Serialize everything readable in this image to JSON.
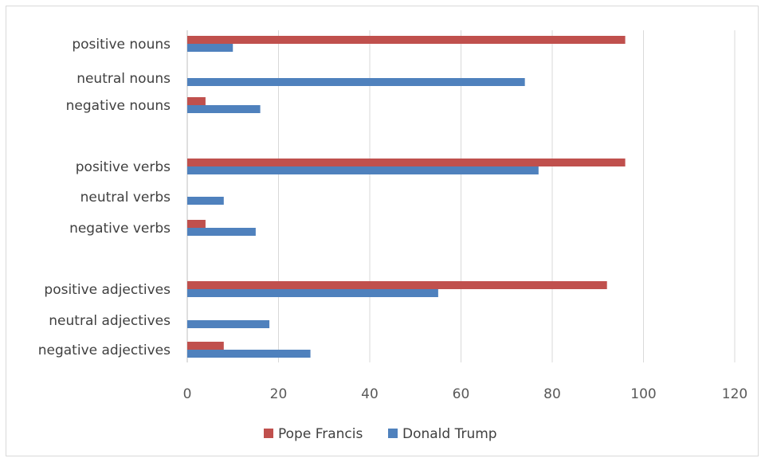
{
  "chart_data": {
    "type": "bar",
    "orientation": "horizontal",
    "title": "",
    "xlabel": "",
    "ylabel": "",
    "xlim": [
      0,
      120
    ],
    "xticks": [
      0,
      20,
      40,
      60,
      80,
      100,
      120
    ],
    "grid": true,
    "legend_position": "bottom",
    "categories": [
      "positive nouns",
      "neutral nouns",
      "negative nouns",
      "positive verbs",
      "neutral verbs",
      "negative verbs",
      "positive adjectives",
      "neutral adjectives",
      "negative adjectives"
    ],
    "series": [
      {
        "name": "Pope Francis",
        "color": "#c0504d",
        "values": [
          96,
          0,
          4,
          96,
          0,
          4,
          92,
          0,
          8
        ]
      },
      {
        "name": "Donald Trump",
        "color": "#4f81bd",
        "values": [
          10,
          74,
          16,
          77,
          8,
          15,
          55,
          18,
          27
        ]
      }
    ]
  }
}
